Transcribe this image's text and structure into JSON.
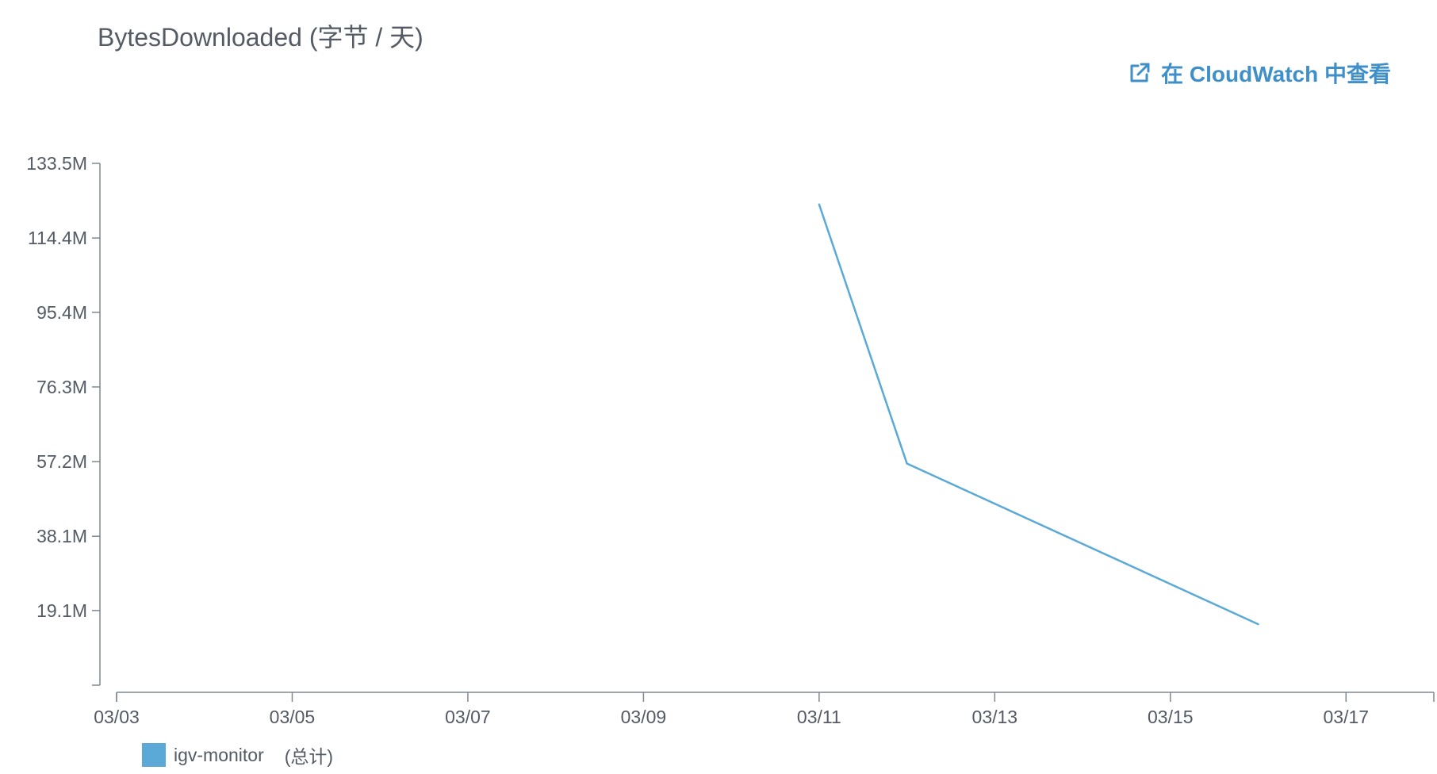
{
  "title": "BytesDownloaded (字节 / 天)",
  "link": {
    "label": "在 CloudWatch 中查看",
    "icon": "external-link-icon"
  },
  "colors": {
    "series": "#5aa9d6",
    "link": "#3f8fc9",
    "axis": "#7f8891",
    "text": "#545b64"
  },
  "legend": {
    "name": "igv-monitor",
    "stat": "(总计)"
  },
  "chart_data": {
    "type": "line",
    "title": "BytesDownloaded (字节 / 天)",
    "x_ticks": [
      "03/03",
      "03/05",
      "03/07",
      "03/09",
      "03/11",
      "03/13",
      "03/15",
      "03/17"
    ],
    "xlim": [
      "03/03",
      "03/18"
    ],
    "y_ticks": [
      "133.5M",
      "114.4M",
      "95.4M",
      "76.3M",
      "57.2M",
      "38.1M",
      "19.1M"
    ],
    "ylim": [
      0,
      133.5
    ],
    "y_unit": "M",
    "grid": false,
    "legend_position": "bottom-left",
    "series": [
      {
        "name": "igv-monitor",
        "stat": "(总计)",
        "points": [
          {
            "x": "03/11",
            "y": 123.0
          },
          {
            "x": "03/12",
            "y": 56.7
          },
          {
            "x": "03/16",
            "y": 15.6
          }
        ]
      }
    ]
  }
}
